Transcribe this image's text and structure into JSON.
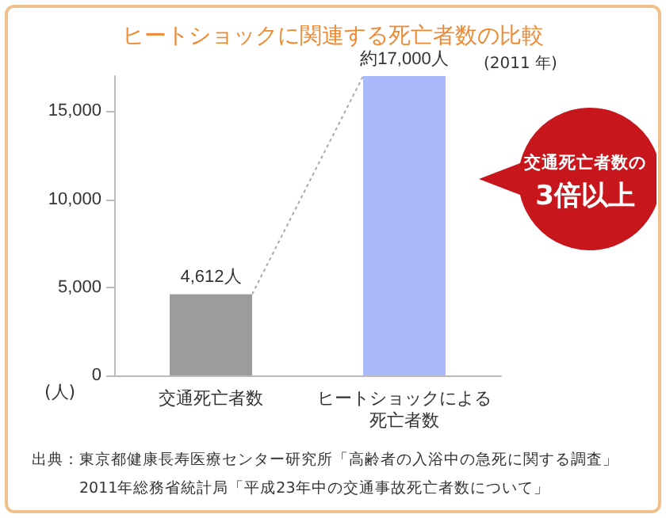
{
  "chart_data": {
    "type": "bar",
    "title": "ヒートショックに関連する死亡者数の比較",
    "categories": [
      "交通死亡者数",
      "ヒートショックによる死亡者数"
    ],
    "values": [
      4612,
      17000
    ],
    "value_labels": [
      "4,612人",
      "約17,000人"
    ],
    "colors": [
      "#9c9c9c",
      "#a9b9fb"
    ],
    "ylim": [
      0,
      17000
    ],
    "yticks": [
      0,
      {
        "value": 5000,
        "label": "5,000"
      },
      {
        "value": 10000,
        "label": "10,000"
      },
      {
        "value": 15000,
        "label": "15,000"
      }
    ],
    "grid": false,
    "annotations": [
      "(2011 年)",
      "(人)",
      "交通死亡者数の",
      "3倍以上",
      "出典：東京都健康長寿医療センター研究所「高齢者の入浴中の急死に関する調査」",
      "2011年総務省統計局「平成23年中の交通事故死亡者数について」"
    ]
  }
}
